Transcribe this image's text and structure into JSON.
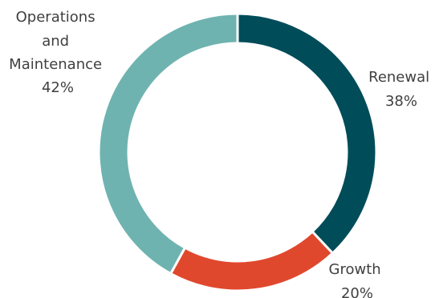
{
  "chart_data": {
    "type": "donut",
    "slices": [
      {
        "key": "renewal",
        "label_lines": [
          "Renewal"
        ],
        "percent_text": "38%",
        "value": 38,
        "color": "#004c59"
      },
      {
        "key": "growth",
        "label_lines": [
          "Growth"
        ],
        "percent_text": "20%",
        "value": 20,
        "color": "#e0482d"
      },
      {
        "key": "operations",
        "label_lines": [
          "Operations",
          "and",
          "Maintenance"
        ],
        "percent_text": "42%",
        "value": 42,
        "color": "#6fb3b0"
      }
    ]
  }
}
